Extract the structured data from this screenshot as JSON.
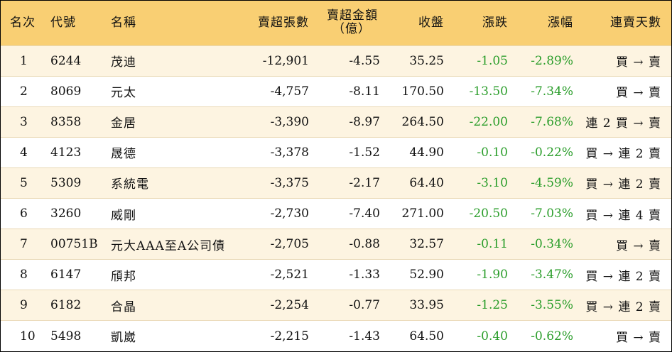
{
  "headers": {
    "rank": "名次",
    "code": "代號",
    "name": "名稱",
    "net_sell_lots": "賣超張數",
    "net_sell_amount_line1": "賣超金額",
    "net_sell_amount_line2": "（億）",
    "close": "收盤",
    "change": "漲跌",
    "change_pct": "漲幅",
    "consecutive_days": "連賣天數"
  },
  "rows": [
    {
      "rank": "1",
      "code": "6244",
      "name": "茂迪",
      "lots": "-12,901",
      "amount": "-4.55",
      "close": "35.25",
      "change": "-1.05",
      "pct": "-2.89%",
      "days": "買 → 賣"
    },
    {
      "rank": "2",
      "code": "8069",
      "name": "元太",
      "lots": "-4,757",
      "amount": "-8.11",
      "close": "170.50",
      "change": "-13.50",
      "pct": "-7.34%",
      "days": "買 → 賣"
    },
    {
      "rank": "3",
      "code": "8358",
      "name": "金居",
      "lots": "-3,390",
      "amount": "-8.97",
      "close": "264.50",
      "change": "-22.00",
      "pct": "-7.68%",
      "days": "連 2 買 → 賣"
    },
    {
      "rank": "4",
      "code": "4123",
      "name": "晟德",
      "lots": "-3,378",
      "amount": "-1.52",
      "close": "44.90",
      "change": "-0.10",
      "pct": "-0.22%",
      "days": "買 → 連 2 賣"
    },
    {
      "rank": "5",
      "code": "5309",
      "name": "系統電",
      "lots": "-3,375",
      "amount": "-2.17",
      "close": "64.40",
      "change": "-3.10",
      "pct": "-4.59%",
      "days": "買 → 連 2 賣"
    },
    {
      "rank": "6",
      "code": "3260",
      "name": "威剛",
      "lots": "-2,730",
      "amount": "-7.40",
      "close": "271.00",
      "change": "-20.50",
      "pct": "-7.03%",
      "days": "買 → 連 4 賣"
    },
    {
      "rank": "7",
      "code": "00751B",
      "name": "元大AAA至A公司債",
      "lots": "-2,705",
      "amount": "-0.88",
      "close": "32.57",
      "change": "-0.11",
      "pct": "-0.34%",
      "days": "買 → 賣"
    },
    {
      "rank": "8",
      "code": "6147",
      "name": "頎邦",
      "lots": "-2,521",
      "amount": "-1.33",
      "close": "52.90",
      "change": "-1.90",
      "pct": "-3.47%",
      "days": "買 → 連 2 賣"
    },
    {
      "rank": "9",
      "code": "6182",
      "name": "合晶",
      "lots": "-2,254",
      "amount": "-0.77",
      "close": "33.95",
      "change": "-1.25",
      "pct": "-3.55%",
      "days": "買 → 連 2 賣"
    },
    {
      "rank": "10",
      "code": "5498",
      "name": "凱崴",
      "lots": "-2,215",
      "amount": "-1.43",
      "close": "64.50",
      "change": "-0.40",
      "pct": "-0.62%",
      "days": "買 → 賣"
    }
  ],
  "colors": {
    "header_bg": "#f9cf73",
    "odd_row_bg": "#fdf4e1",
    "change_text": "#2a9d2a"
  }
}
